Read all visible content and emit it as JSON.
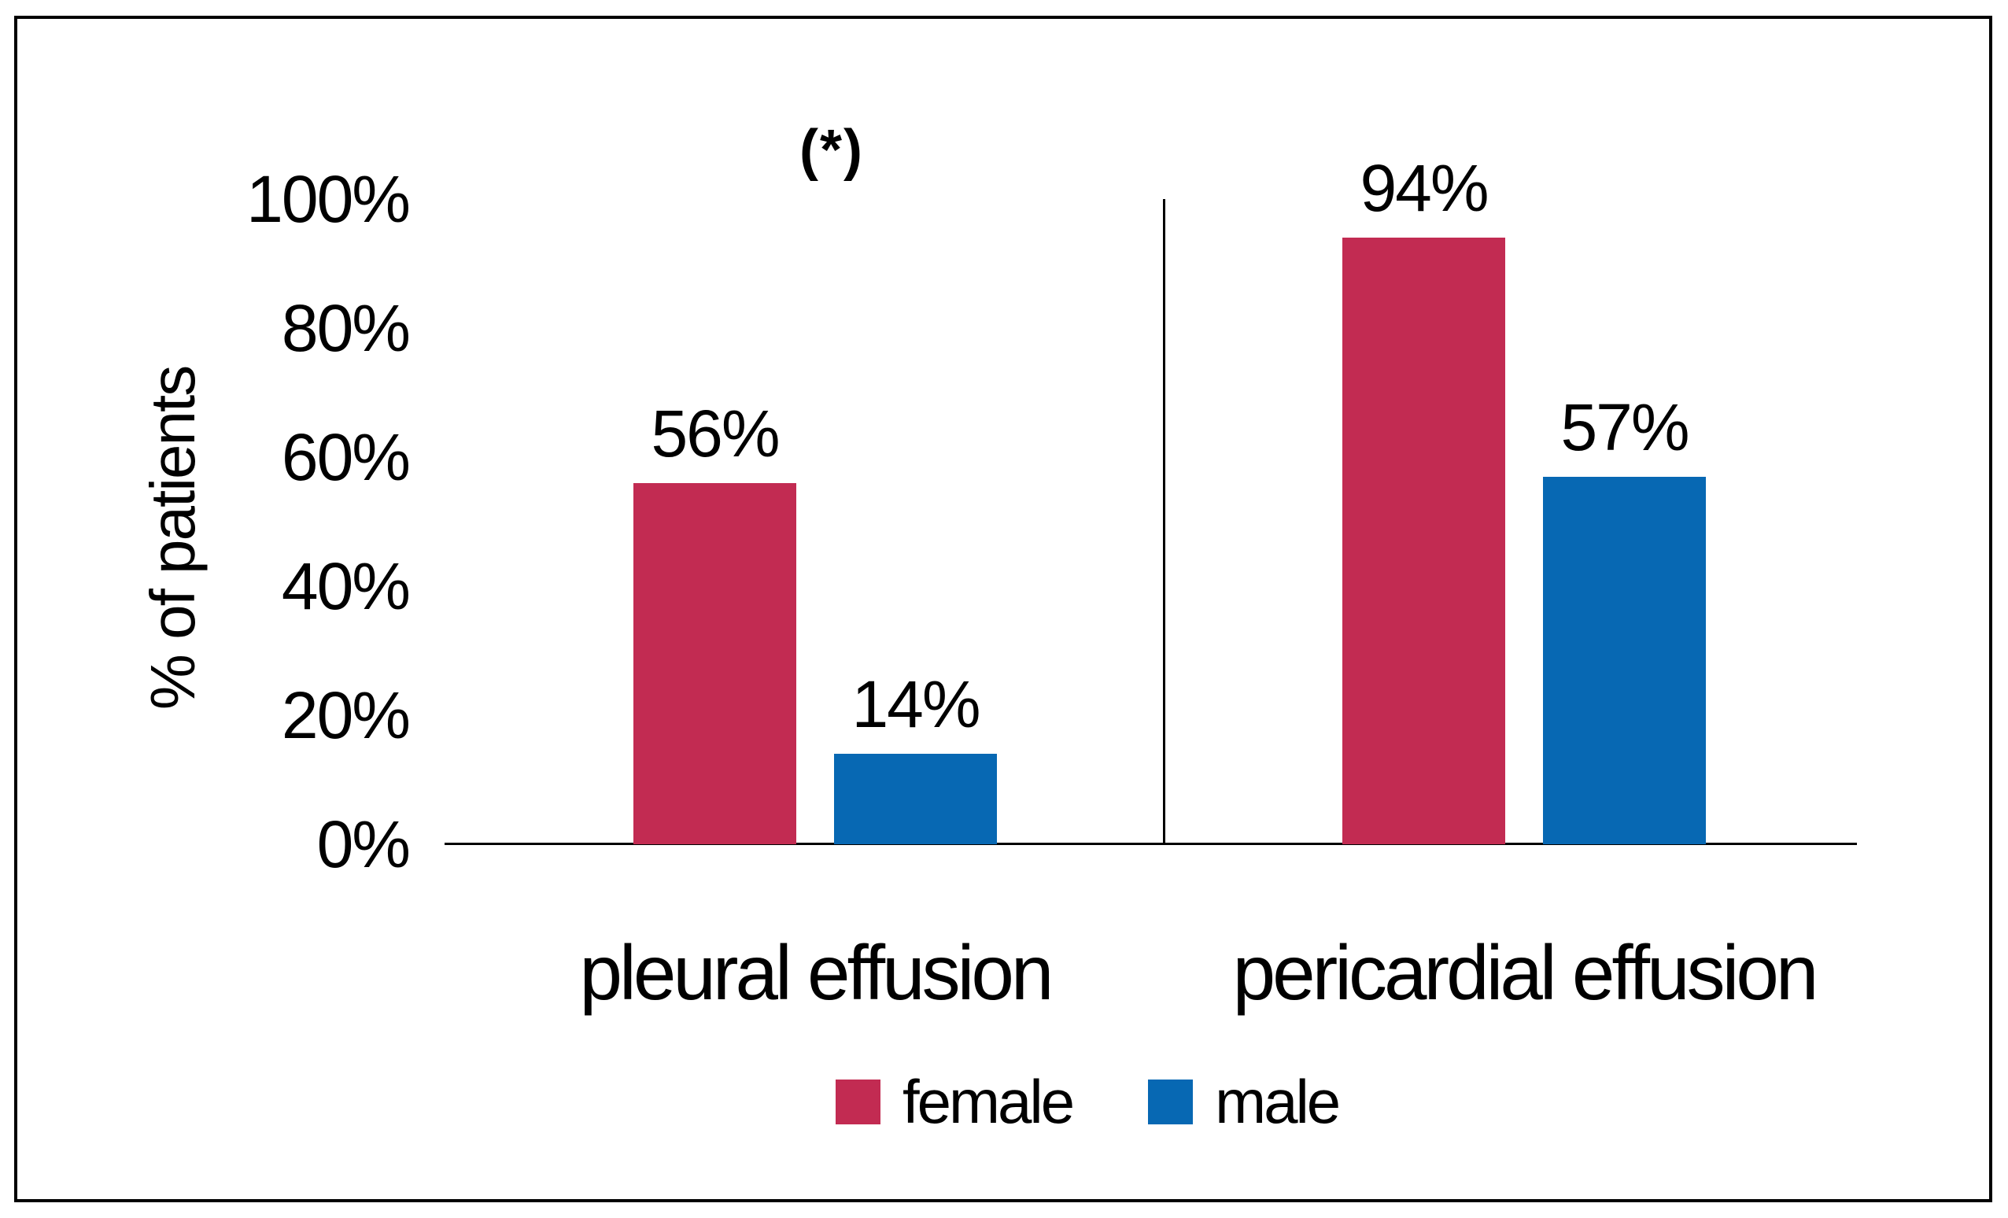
{
  "chart_data": {
    "type": "bar",
    "categories": [
      "pleural effusion",
      "pericardial effusion"
    ],
    "series": [
      {
        "name": "female",
        "color": "#c22b52",
        "values": [
          56,
          94
        ]
      },
      {
        "name": "male",
        "color": "#0768b3",
        "values": [
          14,
          57
        ]
      }
    ],
    "value_labels": [
      [
        "56%",
        "14%"
      ],
      [
        "94%",
        "57%"
      ]
    ],
    "title": "",
    "xlabel": "",
    "ylabel": "% of patients",
    "yticks": [
      "0%",
      "20%",
      "40%",
      "60%",
      "80%",
      "100%"
    ],
    "ylim": [
      0,
      100
    ],
    "annotation": "(*)",
    "annotation_over_category": "pleural effusion",
    "grid": "off",
    "legend_position": "bottom",
    "axis_color": "#000000",
    "background_color": "#ffffff"
  }
}
